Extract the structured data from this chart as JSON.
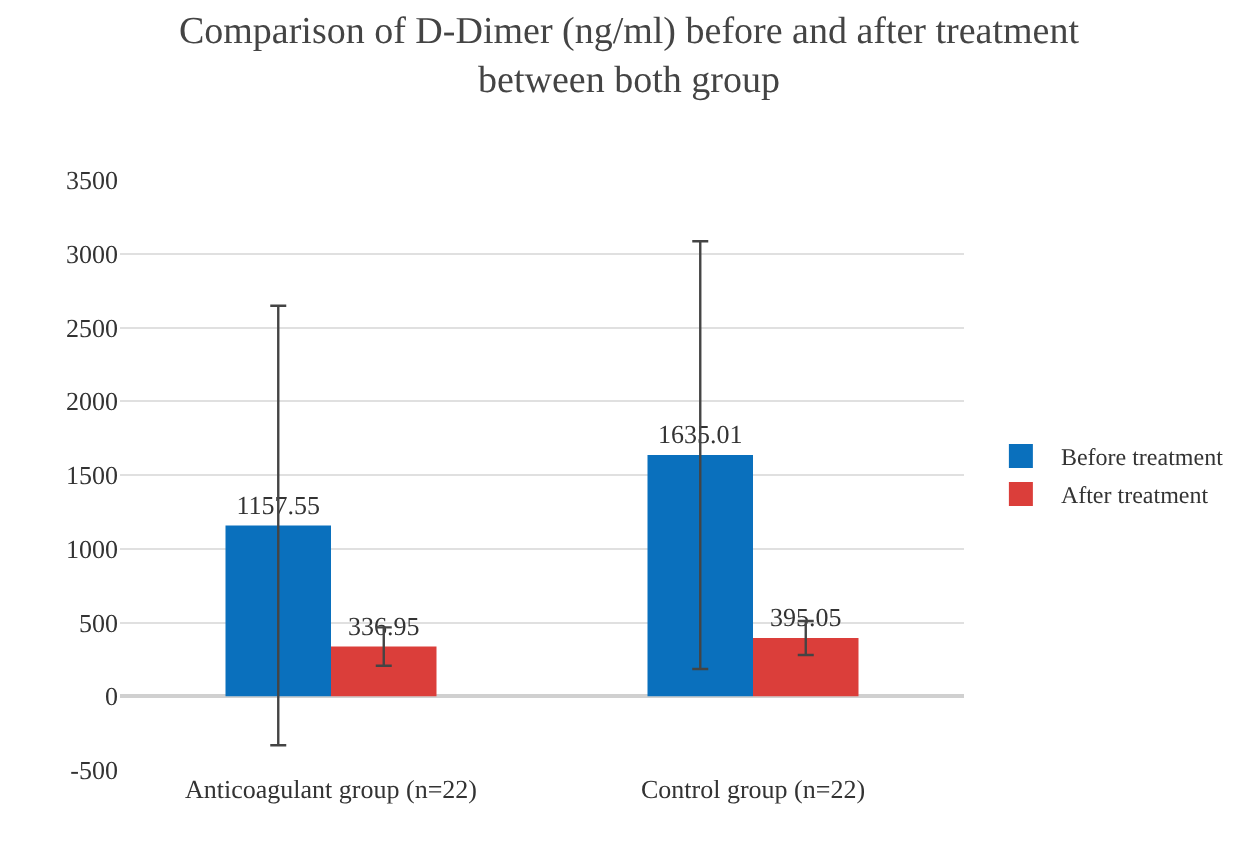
{
  "chart_data": {
    "type": "bar",
    "title": "Comparison of D-Dimer (ng/ml) before and after treatment\nbetween both group",
    "categories": [
      "Anticoagulant group (n=22)",
      "Control group (n=22)"
    ],
    "series": [
      {
        "name": "Before treatment",
        "color": "#0a70bd",
        "values": [
          1157.55,
          1635.01
        ],
        "errors": [
          1490,
          1450
        ]
      },
      {
        "name": "After treatment",
        "color": "#db3e3a",
        "values": [
          336.95,
          395.05
        ],
        "errors": [
          130,
          115
        ]
      }
    ],
    "ylim": [
      -500,
      3500
    ],
    "yticks": [
      -500,
      0,
      500,
      1000,
      1500,
      2000,
      2500,
      3000,
      3500
    ],
    "grid": "y",
    "legend": "right",
    "data_labels": true
  }
}
